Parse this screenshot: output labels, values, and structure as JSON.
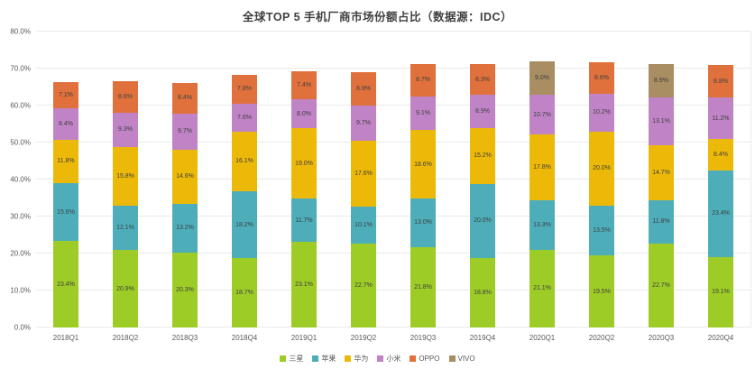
{
  "chart_data": {
    "type": "bar",
    "stacked": true,
    "title": "全球TOP 5 手机厂商市场份额占比（数据源：IDC）",
    "categories": [
      "2018Q1",
      "2018Q2",
      "2018Q3",
      "2018Q4",
      "2019Q1",
      "2019Q2",
      "2019Q3",
      "2019Q4",
      "2020Q1",
      "2020Q2",
      "2020Q3",
      "2020Q4"
    ],
    "series": [
      {
        "id": "samsung",
        "name": "三星",
        "color": "#9ECC26",
        "values": [
          23.4,
          20.9,
          20.3,
          18.7,
          23.1,
          22.7,
          21.8,
          18.8,
          21.1,
          19.5,
          22.7,
          19.1
        ]
      },
      {
        "id": "apple",
        "name": "苹果",
        "color": "#4DAEBA",
        "values": [
          15.6,
          12.1,
          13.2,
          18.2,
          11.7,
          10.1,
          13.0,
          20.0,
          13.3,
          13.5,
          11.8,
          23.4
        ]
      },
      {
        "id": "huawei",
        "name": "华为",
        "color": "#EDB908",
        "values": [
          11.8,
          15.8,
          14.6,
          16.1,
          19.0,
          17.6,
          18.6,
          15.2,
          17.8,
          20.0,
          14.7,
          8.4
        ]
      },
      {
        "id": "xiaomi",
        "name": "小米",
        "color": "#C084C6",
        "values": [
          8.4,
          9.3,
          9.7,
          7.6,
          8.0,
          9.7,
          9.1,
          8.9,
          10.7,
          10.2,
          13.1,
          11.2
        ]
      },
      {
        "id": "oppo",
        "name": "OPPO",
        "color": "#E0713C",
        "values": [
          7.1,
          8.6,
          8.4,
          7.8,
          7.4,
          8.9,
          8.7,
          8.3,
          null,
          8.6,
          null,
          8.8
        ]
      },
      {
        "id": "vivo",
        "name": "VIVO",
        "color": "#A88E62",
        "values": [
          null,
          null,
          null,
          null,
          null,
          null,
          null,
          null,
          9.0,
          null,
          8.9,
          null
        ]
      }
    ],
    "ylim": [
      0,
      80
    ],
    "ytick_step": 10,
    "yticks": [
      "0.0%",
      "10.0%",
      "20.0%",
      "30.0%",
      "40.0%",
      "50.0%",
      "60.0%",
      "70.0%",
      "80.0%"
    ],
    "grid": true,
    "legend_position": "bottom",
    "value_label_suffix": "%"
  }
}
